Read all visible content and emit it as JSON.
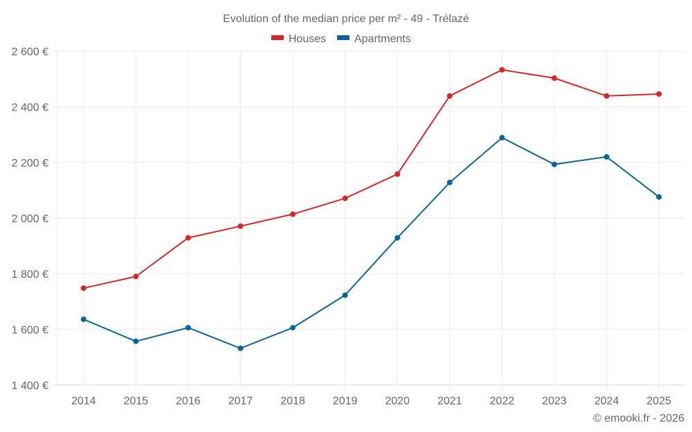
{
  "chart_data": {
    "type": "line",
    "title": "Evolution of the median price per m² - 49 - Trélazé",
    "xlabel": "",
    "ylabel": "",
    "categories": [
      "2014",
      "2015",
      "2016",
      "2017",
      "2018",
      "2019",
      "2020",
      "2021",
      "2022",
      "2023",
      "2024",
      "2025"
    ],
    "series": [
      {
        "name": "Houses",
        "color": "#d62728",
        "values": [
          1748,
          1790,
          1929,
          1971,
          2014,
          2071,
          2158,
          2439,
          2533,
          2503,
          2439,
          2446
        ]
      },
      {
        "name": "Apartments",
        "color": "#0a6699",
        "values": [
          1636,
          1557,
          1606,
          1532,
          1606,
          1723,
          1929,
          2128,
          2289,
          2193,
          2220,
          2076
        ]
      }
    ],
    "ylim": [
      1400,
      2600
    ],
    "yticks": [
      1400,
      1600,
      1800,
      2000,
      2200,
      2400,
      2600
    ],
    "ytick_labels": [
      "1 400 €",
      "1 600 €",
      "1 800 €",
      "2 000 €",
      "2 200 €",
      "2 400 €",
      "2 600 €"
    ],
    "grid": true,
    "legend_position": "top-center",
    "credit": "© emooki.fr - 2026"
  }
}
